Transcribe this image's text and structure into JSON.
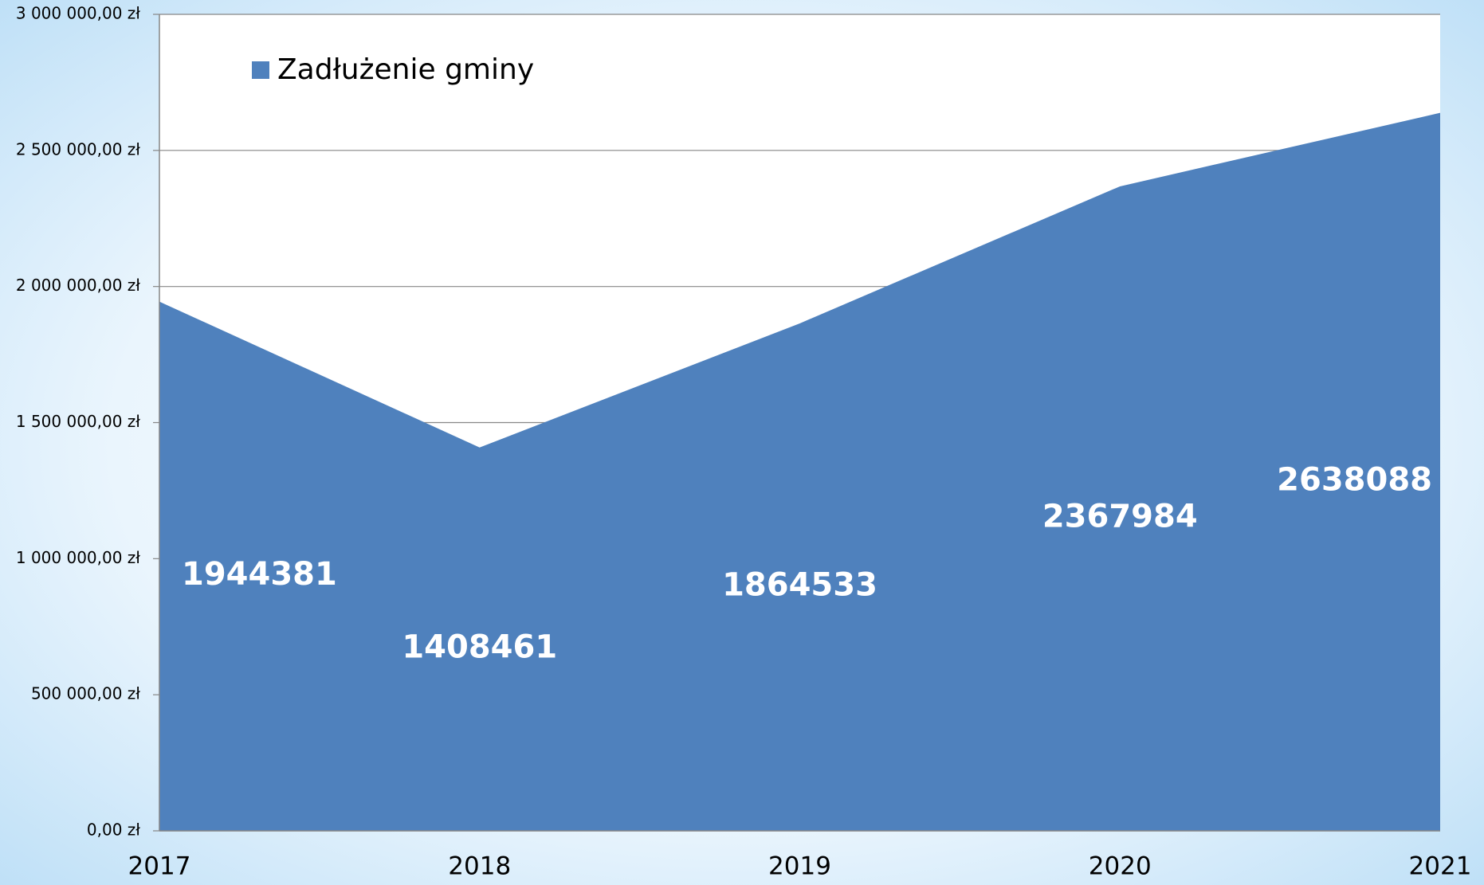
{
  "chart_data": {
    "type": "area",
    "categories": [
      "2017",
      "2018",
      "2019",
      "2020",
      "2021"
    ],
    "series": [
      {
        "name": "Zadłużenie gminy",
        "color": "#4f81bd",
        "values": [
          1944381,
          1408461,
          1864533,
          2367984,
          2638088
        ]
      }
    ],
    "ylim": [
      0,
      3000000
    ],
    "yticks": [
      {
        "value": 0,
        "label": "0,00 zł"
      },
      {
        "value": 500000,
        "label": "500 000,00 zł"
      },
      {
        "value": 1000000,
        "label": "1 000 000,00 zł"
      },
      {
        "value": 1500000,
        "label": "1 500 000,00 zł"
      },
      {
        "value": 2000000,
        "label": "2 000 000,00 zł"
      },
      {
        "value": 2500000,
        "label": "2 500 000,00 zł"
      },
      {
        "value": 3000000,
        "label": "3 000 000,00 zł"
      }
    ],
    "grid": true,
    "legend": "top-left"
  }
}
